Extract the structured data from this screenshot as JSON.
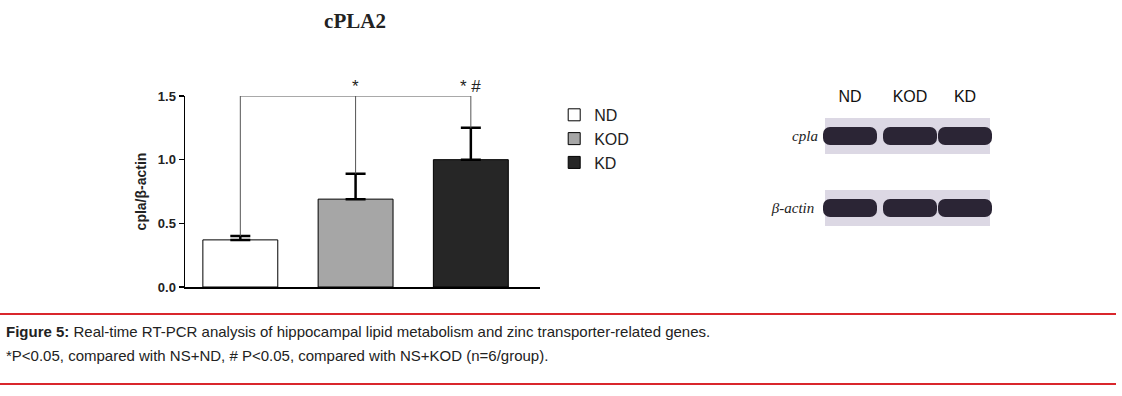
{
  "chart_data": {
    "type": "bar",
    "title": "cPLA2",
    "ylabel": "cpla/β-actin",
    "categories": [
      "ND",
      "KOD",
      "KD"
    ],
    "values": [
      0.37,
      0.69,
      1.0
    ],
    "errors": [
      0.03,
      0.2,
      0.25
    ],
    "colors": [
      "#ffffff",
      "#a6a6a6",
      "#262626"
    ],
    "ylim": [
      0,
      1.5
    ],
    "yticks": [
      {
        "value": 0,
        "label": "0.0"
      },
      {
        "value": 0.5,
        "label": "0.5"
      },
      {
        "value": 1,
        "label": "1.0"
      },
      {
        "value": 1.5,
        "label": "1.5"
      }
    ],
    "grid": false,
    "legend": "right",
    "tick_labels": "y",
    "annotations": [
      {
        "category": "KOD",
        "text": "*"
      },
      {
        "category": "KD",
        "text": "* #"
      }
    ]
  },
  "blot": {
    "lanes": [
      "ND",
      "KOD",
      "KD"
    ],
    "rows": [
      "cpla",
      "β-actin"
    ]
  },
  "caption": {
    "label": "Figure 5:",
    "text": "Real-time RT-PCR analysis of hippocampal lipid metabolism and zinc transporter-related genes.",
    "note": "*P<0.05, compared with NS+ND, # P<0.05, compared with NS+KOD (n=6/group)."
  }
}
